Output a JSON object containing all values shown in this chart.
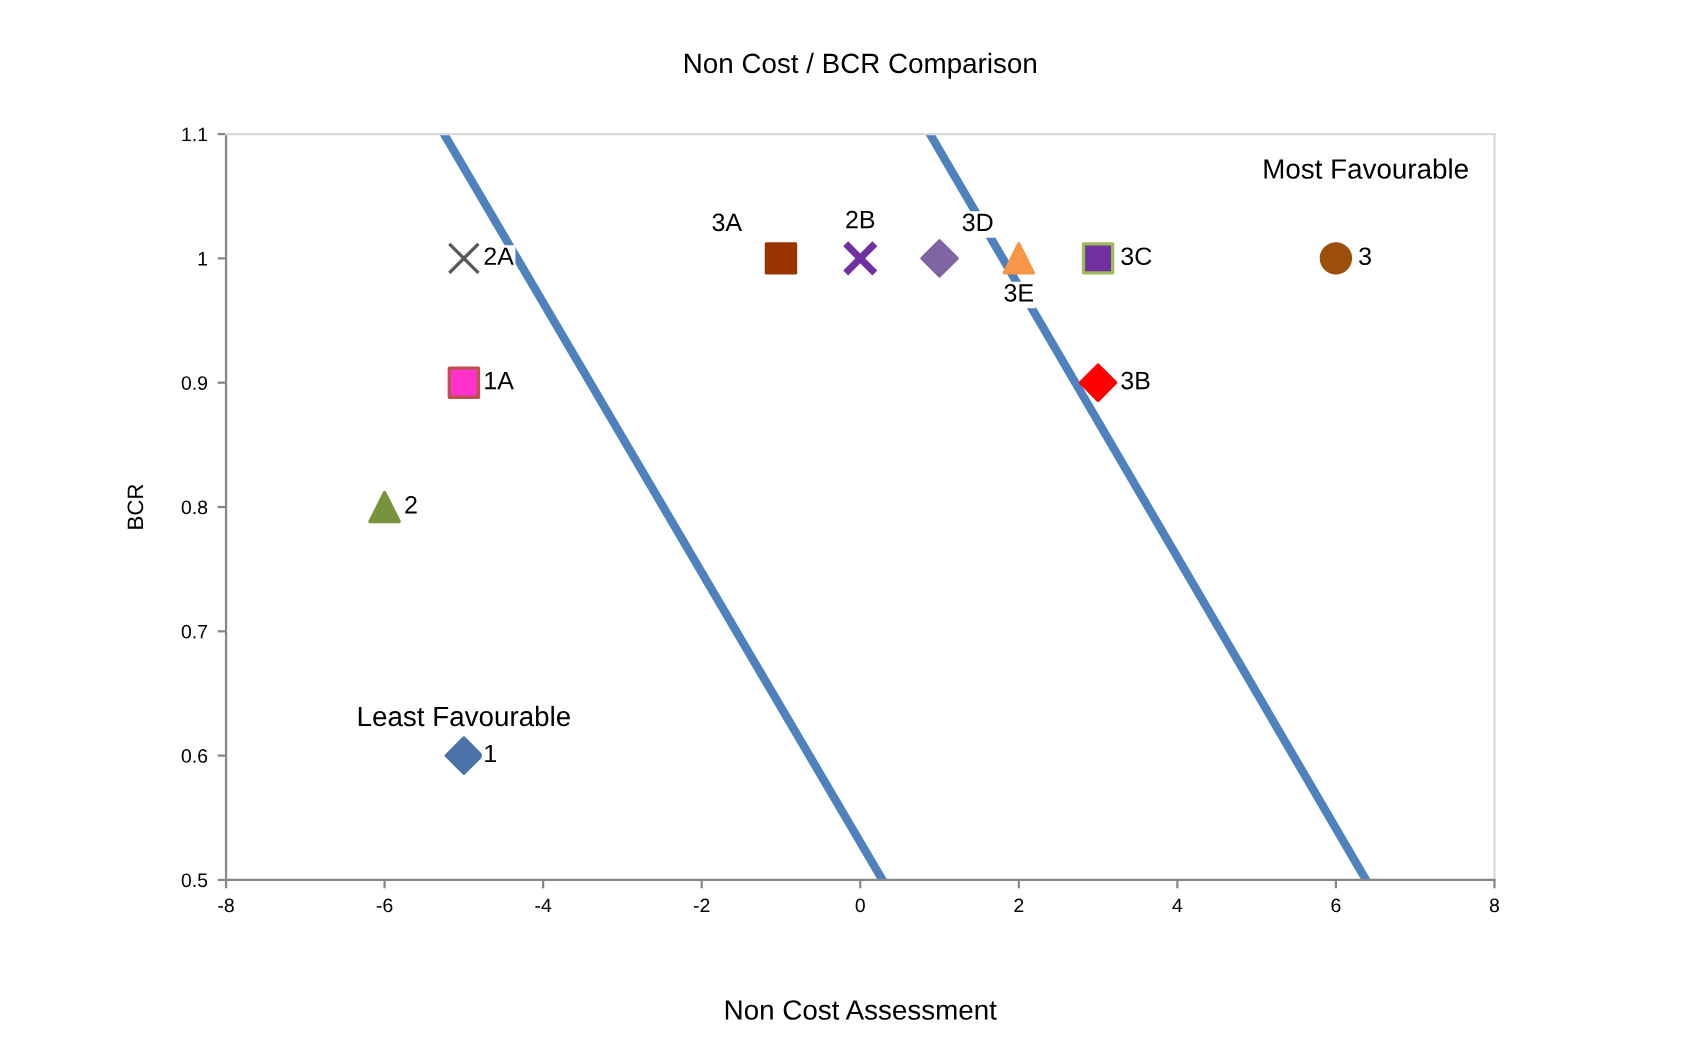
{
  "chart_data": {
    "type": "scatter",
    "title": "Non Cost / BCR Comparison",
    "xlabel": "Non Cost Assessment",
    "ylabel": "BCR",
    "xlim": [
      -8,
      8
    ],
    "xticks": [
      -8,
      -6,
      -4,
      -2,
      0,
      2,
      4,
      6,
      8
    ],
    "ylim": [
      0.5,
      1.1
    ],
    "yticks": [
      0.5,
      0.6,
      0.7,
      0.8,
      0.9,
      1,
      1.1
    ],
    "grid": false,
    "legend": false,
    "annotations": [
      "Least Favourable",
      "Most Favourable"
    ],
    "series": [
      {
        "name": "1",
        "marker": "diamond",
        "color": "#4a72a8",
        "x": [
          -5
        ],
        "values": [
          0.6
        ]
      },
      {
        "name": "1A",
        "marker": "square",
        "color": "#ff33cc",
        "x": [
          -5
        ],
        "values": [
          0.9
        ]
      },
      {
        "name": "2",
        "marker": "triangle",
        "color": "#77933c",
        "x": [
          -6
        ],
        "values": [
          0.8
        ]
      },
      {
        "name": "2A",
        "marker": "cross",
        "color": "#595959",
        "x": [
          -5
        ],
        "values": [
          1
        ]
      },
      {
        "name": "3A",
        "marker": "square",
        "color": "#993300",
        "x": [
          -1
        ],
        "values": [
          1
        ]
      },
      {
        "name": "2B",
        "marker": "cross",
        "color": "#7030a0",
        "x": [
          0
        ],
        "values": [
          1
        ]
      },
      {
        "name": "3D",
        "marker": "diamond",
        "color": "#8064a2",
        "x": [
          1
        ],
        "values": [
          1
        ]
      },
      {
        "name": "3E",
        "marker": "triangle",
        "color": "#f79646",
        "x": [
          2
        ],
        "values": [
          1
        ]
      },
      {
        "name": "3C",
        "marker": "square",
        "color": "#7030a0",
        "x": [
          3
        ],
        "values": [
          1
        ]
      },
      {
        "name": "3B",
        "marker": "diamond",
        "color": "#ff0000",
        "x": [
          3
        ],
        "values": [
          0.9
        ]
      },
      {
        "name": "3",
        "marker": "circle",
        "color": "#9c4f0a",
        "x": [
          6
        ],
        "values": [
          1
        ]
      },
      {
        "type": "line",
        "line_style": "solid",
        "color": "#4f81bd",
        "x": [
          -5.25,
          0.28
        ],
        "values": [
          1.1,
          0.5
        ]
      },
      {
        "type": "line",
        "line_style": "solid",
        "color": "#4f81bd",
        "x": [
          0.88,
          6.38
        ],
        "values": [
          1.1,
          0.5
        ]
      }
    ]
  }
}
